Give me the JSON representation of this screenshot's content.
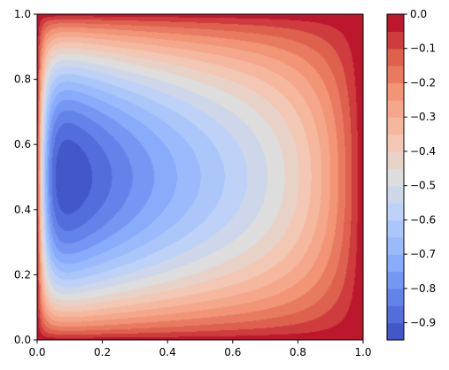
{
  "chart_data": {
    "type": "heatmap",
    "subtype": "filled-contour",
    "colormap": "coolwarm",
    "title": "",
    "xlabel": "",
    "ylabel": "",
    "xlim": [
      0.0,
      1.0
    ],
    "ylim": [
      0.0,
      1.0
    ],
    "x_ticks": [
      "0.0",
      "0.2",
      "0.4",
      "0.6",
      "0.8",
      "1.0"
    ],
    "y_ticks": [
      "0.0",
      "0.2",
      "0.4",
      "0.6",
      "0.8",
      "1.0"
    ],
    "grid": false,
    "field": {
      "min": -0.95,
      "max": 0.0,
      "minimum_location": [
        0.05,
        0.5
      ],
      "description_value_at_boundaries": 0.0
    },
    "colorbar": {
      "range": [
        -0.95,
        0.0
      ],
      "levels": 19,
      "ticks": [
        "0.0",
        "−0.1",
        "−0.2",
        "−0.3",
        "−0.4",
        "−0.5",
        "−0.6",
        "−0.7",
        "−0.8",
        "−0.9"
      ],
      "tick_values": [
        0.0,
        -0.1,
        -0.2,
        -0.3,
        -0.4,
        -0.5,
        -0.6,
        -0.7,
        -0.8,
        -0.9
      ]
    }
  }
}
